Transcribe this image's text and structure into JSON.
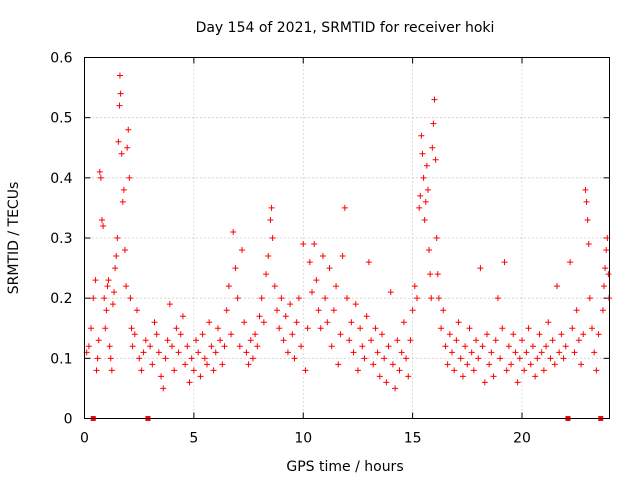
{
  "chart_data": {
    "type": "scatter",
    "title": "Day 154 of 2021, SRMTID for receiver hoki",
    "xlabel": "GPS time / hours",
    "ylabel": "SRMTID / TECUs",
    "xlim": [
      0,
      24
    ],
    "ylim": [
      0,
      0.6
    ],
    "xticks": [
      0,
      5,
      10,
      15,
      20
    ],
    "xtick_labels": [
      "0",
      "5",
      "10",
      "15",
      "20"
    ],
    "yticks": [
      0,
      0.1,
      0.2,
      0.3,
      0.4,
      0.5,
      0.6
    ],
    "ytick_labels": [
      "0",
      "0.1",
      "0.2",
      "0.3",
      "0.4",
      "0.5",
      "0.6"
    ],
    "grid": true,
    "marker": "+",
    "color": "#ff0000",
    "gap_markers_x": [
      0.4,
      2.9,
      22.1,
      23.6
    ],
    "series": [
      {
        "name": "SRMTID",
        "points": [
          [
            0.1,
            0.11
          ],
          [
            0.2,
            0.12
          ],
          [
            0.3,
            0.15
          ],
          [
            0.4,
            0.2
          ],
          [
            0.5,
            0.23
          ],
          [
            0.55,
            0.08
          ],
          [
            0.6,
            0.1
          ],
          [
            0.65,
            0.13
          ],
          [
            0.7,
            0.41
          ],
          [
            0.75,
            0.4
          ],
          [
            0.8,
            0.33
          ],
          [
            0.85,
            0.32
          ],
          [
            0.9,
            0.2
          ],
          [
            0.95,
            0.15
          ],
          [
            1.0,
            0.18
          ],
          [
            1.05,
            0.22
          ],
          [
            1.1,
            0.23
          ],
          [
            1.15,
            0.12
          ],
          [
            1.2,
            0.1
          ],
          [
            1.25,
            0.08
          ],
          [
            1.3,
            0.19
          ],
          [
            1.35,
            0.21
          ],
          [
            1.4,
            0.25
          ],
          [
            1.45,
            0.27
          ],
          [
            1.5,
            0.3
          ],
          [
            1.55,
            0.46
          ],
          [
            1.6,
            0.52
          ],
          [
            1.62,
            0.57
          ],
          [
            1.65,
            0.54
          ],
          [
            1.7,
            0.44
          ],
          [
            1.75,
            0.36
          ],
          [
            1.8,
            0.38
          ],
          [
            1.85,
            0.28
          ],
          [
            1.9,
            0.22
          ],
          [
            1.95,
            0.45
          ],
          [
            2.0,
            0.48
          ],
          [
            2.05,
            0.4
          ],
          [
            2.1,
            0.2
          ],
          [
            2.15,
            0.15
          ],
          [
            2.2,
            0.12
          ],
          [
            2.3,
            0.14
          ],
          [
            2.4,
            0.18
          ],
          [
            2.5,
            0.1
          ],
          [
            2.6,
            0.08
          ],
          [
            2.7,
            0.11
          ],
          [
            2.8,
            0.13
          ],
          [
            3.0,
            0.12
          ],
          [
            3.1,
            0.09
          ],
          [
            3.2,
            0.16
          ],
          [
            3.3,
            0.14
          ],
          [
            3.4,
            0.11
          ],
          [
            3.5,
            0.07
          ],
          [
            3.6,
            0.05
          ],
          [
            3.7,
            0.1
          ],
          [
            3.8,
            0.13
          ],
          [
            3.9,
            0.19
          ],
          [
            4.0,
            0.12
          ],
          [
            4.1,
            0.08
          ],
          [
            4.2,
            0.15
          ],
          [
            4.3,
            0.11
          ],
          [
            4.4,
            0.14
          ],
          [
            4.5,
            0.17
          ],
          [
            4.6,
            0.09
          ],
          [
            4.7,
            0.12
          ],
          [
            4.8,
            0.06
          ],
          [
            4.9,
            0.1
          ],
          [
            5.0,
            0.08
          ],
          [
            5.1,
            0.13
          ],
          [
            5.2,
            0.11
          ],
          [
            5.3,
            0.07
          ],
          [
            5.4,
            0.14
          ],
          [
            5.5,
            0.1
          ],
          [
            5.6,
            0.09
          ],
          [
            5.7,
            0.16
          ],
          [
            5.8,
            0.12
          ],
          [
            5.9,
            0.08
          ],
          [
            6.0,
            0.11
          ],
          [
            6.1,
            0.15
          ],
          [
            6.2,
            0.13
          ],
          [
            6.3,
            0.09
          ],
          [
            6.4,
            0.12
          ],
          [
            6.5,
            0.18
          ],
          [
            6.6,
            0.22
          ],
          [
            6.7,
            0.14
          ],
          [
            6.8,
            0.31
          ],
          [
            6.9,
            0.25
          ],
          [
            7.0,
            0.2
          ],
          [
            7.1,
            0.12
          ],
          [
            7.2,
            0.28
          ],
          [
            7.3,
            0.16
          ],
          [
            7.4,
            0.11
          ],
          [
            7.5,
            0.09
          ],
          [
            7.6,
            0.13
          ],
          [
            7.7,
            0.1
          ],
          [
            7.8,
            0.14
          ],
          [
            7.9,
            0.12
          ],
          [
            8.0,
            0.17
          ],
          [
            8.1,
            0.2
          ],
          [
            8.2,
            0.16
          ],
          [
            8.3,
            0.24
          ],
          [
            8.4,
            0.27
          ],
          [
            8.5,
            0.33
          ],
          [
            8.55,
            0.35
          ],
          [
            8.6,
            0.3
          ],
          [
            8.7,
            0.22
          ],
          [
            8.8,
            0.18
          ],
          [
            8.9,
            0.15
          ],
          [
            9.0,
            0.2
          ],
          [
            9.1,
            0.13
          ],
          [
            9.2,
            0.17
          ],
          [
            9.3,
            0.11
          ],
          [
            9.4,
            0.19
          ],
          [
            9.5,
            0.14
          ],
          [
            9.6,
            0.1
          ],
          [
            9.7,
            0.16
          ],
          [
            9.8,
            0.2
          ],
          [
            9.9,
            0.12
          ],
          [
            10.0,
            0.29
          ],
          [
            10.1,
            0.08
          ],
          [
            10.2,
            0.15
          ],
          [
            10.3,
            0.26
          ],
          [
            10.4,
            0.21
          ],
          [
            10.5,
            0.29
          ],
          [
            10.6,
            0.23
          ],
          [
            10.7,
            0.18
          ],
          [
            10.8,
            0.15
          ],
          [
            10.9,
            0.27
          ],
          [
            11.0,
            0.2
          ],
          [
            11.1,
            0.16
          ],
          [
            11.2,
            0.25
          ],
          [
            11.3,
            0.12
          ],
          [
            11.4,
            0.18
          ],
          [
            11.5,
            0.22
          ],
          [
            11.6,
            0.09
          ],
          [
            11.7,
            0.14
          ],
          [
            11.8,
            0.27
          ],
          [
            11.9,
            0.35
          ],
          [
            12.0,
            0.2
          ],
          [
            12.1,
            0.13
          ],
          [
            12.2,
            0.16
          ],
          [
            12.3,
            0.11
          ],
          [
            12.4,
            0.19
          ],
          [
            12.5,
            0.08
          ],
          [
            12.6,
            0.15
          ],
          [
            12.7,
            0.12
          ],
          [
            12.8,
            0.1
          ],
          [
            12.9,
            0.17
          ],
          [
            13.0,
            0.26
          ],
          [
            13.1,
            0.13
          ],
          [
            13.2,
            0.09
          ],
          [
            13.3,
            0.15
          ],
          [
            13.4,
            0.11
          ],
          [
            13.5,
            0.07
          ],
          [
            13.6,
            0.14
          ],
          [
            13.7,
            0.1
          ],
          [
            13.8,
            0.06
          ],
          [
            13.9,
            0.12
          ],
          [
            14.0,
            0.21
          ],
          [
            14.1,
            0.09
          ],
          [
            14.2,
            0.05
          ],
          [
            14.3,
            0.13
          ],
          [
            14.4,
            0.08
          ],
          [
            14.5,
            0.11
          ],
          [
            14.6,
            0.16
          ],
          [
            14.7,
            0.1
          ],
          [
            14.8,
            0.07
          ],
          [
            14.9,
            0.13
          ],
          [
            15.0,
            0.18
          ],
          [
            15.1,
            0.22
          ],
          [
            15.2,
            0.2
          ],
          [
            15.3,
            0.35
          ],
          [
            15.35,
            0.37
          ],
          [
            15.4,
            0.47
          ],
          [
            15.45,
            0.44
          ],
          [
            15.5,
            0.4
          ],
          [
            15.55,
            0.33
          ],
          [
            15.6,
            0.36
          ],
          [
            15.65,
            0.42
          ],
          [
            15.7,
            0.38
          ],
          [
            15.75,
            0.28
          ],
          [
            15.8,
            0.24
          ],
          [
            15.85,
            0.2
          ],
          [
            15.9,
            0.45
          ],
          [
            15.95,
            0.49
          ],
          [
            16.0,
            0.53
          ],
          [
            16.05,
            0.43
          ],
          [
            16.1,
            0.3
          ],
          [
            16.15,
            0.24
          ],
          [
            16.2,
            0.2
          ],
          [
            16.3,
            0.15
          ],
          [
            16.4,
            0.18
          ],
          [
            16.5,
            0.12
          ],
          [
            16.6,
            0.09
          ],
          [
            16.7,
            0.14
          ],
          [
            16.8,
            0.11
          ],
          [
            16.9,
            0.08
          ],
          [
            17.0,
            0.13
          ],
          [
            17.1,
            0.16
          ],
          [
            17.2,
            0.1
          ],
          [
            17.3,
            0.07
          ],
          [
            17.4,
            0.12
          ],
          [
            17.5,
            0.09
          ],
          [
            17.6,
            0.15
          ],
          [
            17.7,
            0.11
          ],
          [
            17.8,
            0.08
          ],
          [
            17.9,
            0.13
          ],
          [
            18.0,
            0.1
          ],
          [
            18.1,
            0.25
          ],
          [
            18.2,
            0.12
          ],
          [
            18.3,
            0.06
          ],
          [
            18.4,
            0.14
          ],
          [
            18.5,
            0.09
          ],
          [
            18.6,
            0.11
          ],
          [
            18.7,
            0.07
          ],
          [
            18.8,
            0.13
          ],
          [
            18.9,
            0.2
          ],
          [
            19.0,
            0.1
          ],
          [
            19.1,
            0.15
          ],
          [
            19.2,
            0.26
          ],
          [
            19.3,
            0.08
          ],
          [
            19.4,
            0.12
          ],
          [
            19.5,
            0.09
          ],
          [
            19.6,
            0.14
          ],
          [
            19.7,
            0.11
          ],
          [
            19.8,
            0.06
          ],
          [
            19.9,
            0.1
          ],
          [
            20.0,
            0.13
          ],
          [
            20.1,
            0.08
          ],
          [
            20.2,
            0.11
          ],
          [
            20.3,
            0.15
          ],
          [
            20.4,
            0.09
          ],
          [
            20.5,
            0.12
          ],
          [
            20.6,
            0.07
          ],
          [
            20.7,
            0.1
          ],
          [
            20.8,
            0.14
          ],
          [
            20.9,
            0.11
          ],
          [
            21.0,
            0.08
          ],
          [
            21.1,
            0.12
          ],
          [
            21.2,
            0.16
          ],
          [
            21.3,
            0.1
          ],
          [
            21.4,
            0.13
          ],
          [
            21.5,
            0.09
          ],
          [
            21.6,
            0.22
          ],
          [
            21.7,
            0.11
          ],
          [
            21.8,
            0.14
          ],
          [
            21.9,
            0.1
          ],
          [
            22.0,
            0.12
          ],
          [
            22.2,
            0.26
          ],
          [
            22.3,
            0.15
          ],
          [
            22.4,
            0.11
          ],
          [
            22.5,
            0.18
          ],
          [
            22.6,
            0.13
          ],
          [
            22.7,
            0.09
          ],
          [
            22.8,
            0.14
          ],
          [
            22.9,
            0.38
          ],
          [
            22.95,
            0.36
          ],
          [
            23.0,
            0.33
          ],
          [
            23.05,
            0.29
          ],
          [
            23.1,
            0.2
          ],
          [
            23.2,
            0.15
          ],
          [
            23.3,
            0.11
          ],
          [
            23.4,
            0.08
          ],
          [
            23.5,
            0.14
          ],
          [
            23.7,
            0.18
          ],
          [
            23.75,
            0.22
          ],
          [
            23.8,
            0.25
          ],
          [
            23.85,
            0.28
          ],
          [
            23.9,
            0.3
          ],
          [
            23.95,
            0.24
          ],
          [
            23.98,
            0.2
          ]
        ]
      }
    ]
  }
}
